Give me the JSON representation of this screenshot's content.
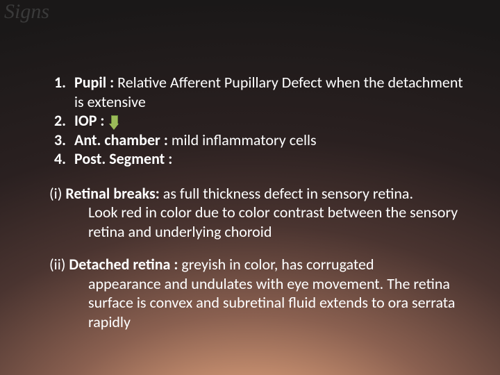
{
  "slide": {
    "title": "Signs",
    "background": {
      "gradient_stops": [
        "#e8b890",
        "#c89070",
        "#8a6050",
        "#4a3430",
        "#2a2020",
        "#1a1818"
      ],
      "text_color": "#ffffff",
      "title_color": "#3a3a3a"
    },
    "items": [
      {
        "num": "1.",
        "label": "Pupil :",
        "rest": " Relative Afferent Pupillary Defect when the detachment is extensive"
      },
      {
        "num": "2.",
        "label": "IOP :",
        "arrow": true,
        "arrow_fill": "#9bbb59",
        "arrow_border": "#6a8a3a"
      },
      {
        "num": "3.",
        "label": "Ant. chamber :",
        "rest": " mild inflammatory cells"
      },
      {
        "num": "4.",
        "label": "Post. Segment :",
        "rest": ""
      }
    ],
    "subsections": [
      {
        "marker": "(i)",
        "label": " Retinal breaks:",
        "rest_first": " as full thickness defect in sensory retina.",
        "body": "Look red in color due to color contrast between the sensory retina and underlying choroid"
      },
      {
        "marker": "(ii)",
        "label": " Detached retina :",
        "rest_first": " greyish in color, has corrugated",
        "body": "appearance and undulates with eye movement. The retina surface is convex and subretinal fluid extends to ora serrata rapidly"
      }
    ],
    "typography": {
      "title_font": "Georgia, serif",
      "title_size_pt": 30,
      "body_font": "Calibri, sans-serif",
      "body_size_pt": 22
    }
  }
}
